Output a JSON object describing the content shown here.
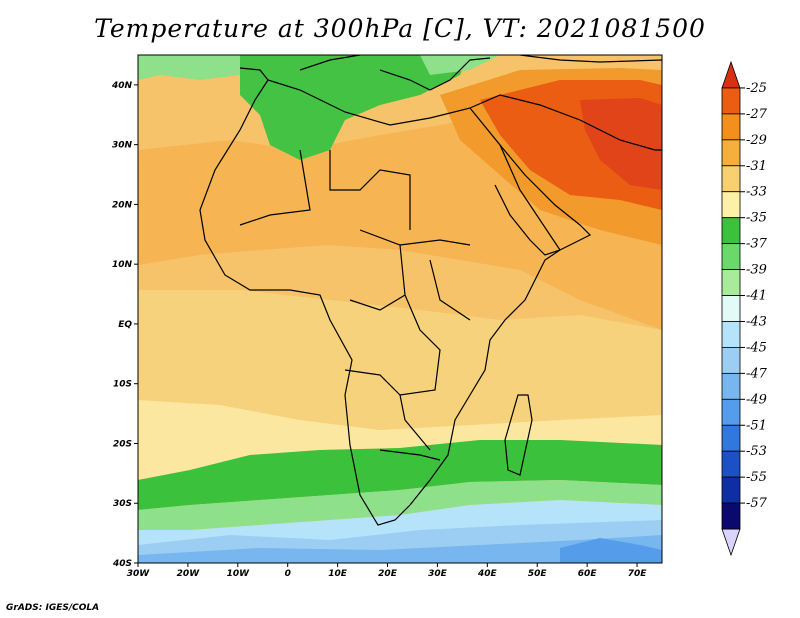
{
  "title": "Temperature at 300hPa [C], VT: 2021081500",
  "footer": "GrADS: IGES/COLA",
  "map": {
    "lon_range": [
      -30,
      75
    ],
    "lat_range": [
      -40,
      45
    ],
    "lat_ticks": [
      {
        "value": 40,
        "label": "40N"
      },
      {
        "value": 30,
        "label": "30N"
      },
      {
        "value": 20,
        "label": "20N"
      },
      {
        "value": 10,
        "label": "10N"
      },
      {
        "value": 0,
        "label": "EQ"
      },
      {
        "value": -10,
        "label": "10S"
      },
      {
        "value": -20,
        "label": "20S"
      },
      {
        "value": -30,
        "label": "30S"
      },
      {
        "value": -40,
        "label": "40S"
      }
    ],
    "lon_ticks": [
      {
        "value": -30,
        "label": "30W"
      },
      {
        "value": -20,
        "label": "20W"
      },
      {
        "value": -10,
        "label": "10W"
      },
      {
        "value": 0,
        "label": "0"
      },
      {
        "value": 10,
        "label": "10E"
      },
      {
        "value": 20,
        "label": "20E"
      },
      {
        "value": 30,
        "label": "30E"
      },
      {
        "value": 40,
        "label": "40E"
      },
      {
        "value": 50,
        "label": "50E"
      },
      {
        "value": 60,
        "label": "60E"
      },
      {
        "value": 70,
        "label": "70E"
      }
    ]
  },
  "colorbar": {
    "labels": [
      "-25",
      "-27",
      "-29",
      "-31",
      "-33",
      "-35",
      "-37",
      "-39",
      "-41",
      "-43",
      "-45",
      "-47",
      "-49",
      "-51",
      "-53",
      "-55",
      "-57"
    ],
    "colors": [
      "#d92e14",
      "#ea5d12",
      "#f2901e",
      "#f4af3c",
      "#f8d070",
      "#fdf1a7",
      "#3bc13b",
      "#6ad86a",
      "#a8ec9b",
      "#e2fbf7",
      "#b5e3f9",
      "#9ccef4",
      "#77b6ef",
      "#559dea",
      "#3178de",
      "#1b51c4",
      "#0d2fa3",
      "#0a0a6e",
      "#dcd3fb"
    ]
  },
  "fields": {
    "ocean_bg": "#f6c36a",
    "saharan": "#f6b552",
    "mideast_warm": "#f29a2c",
    "mideast_hot": "#ea5d12",
    "mideast_core": "#e04418",
    "equatorial": "#f7d27c",
    "subtrop_light": "#fbe7a0",
    "med_green": "#43c244",
    "med_light": "#8fe08a",
    "south_green": "#3bc13b",
    "south_light": "#8fe08a",
    "south_cool1": "#b5e3f9",
    "south_cool2": "#9ccef4",
    "south_cool3": "#77b6ef",
    "south_cool4": "#559dea",
    "land_outline": "#000000"
  }
}
